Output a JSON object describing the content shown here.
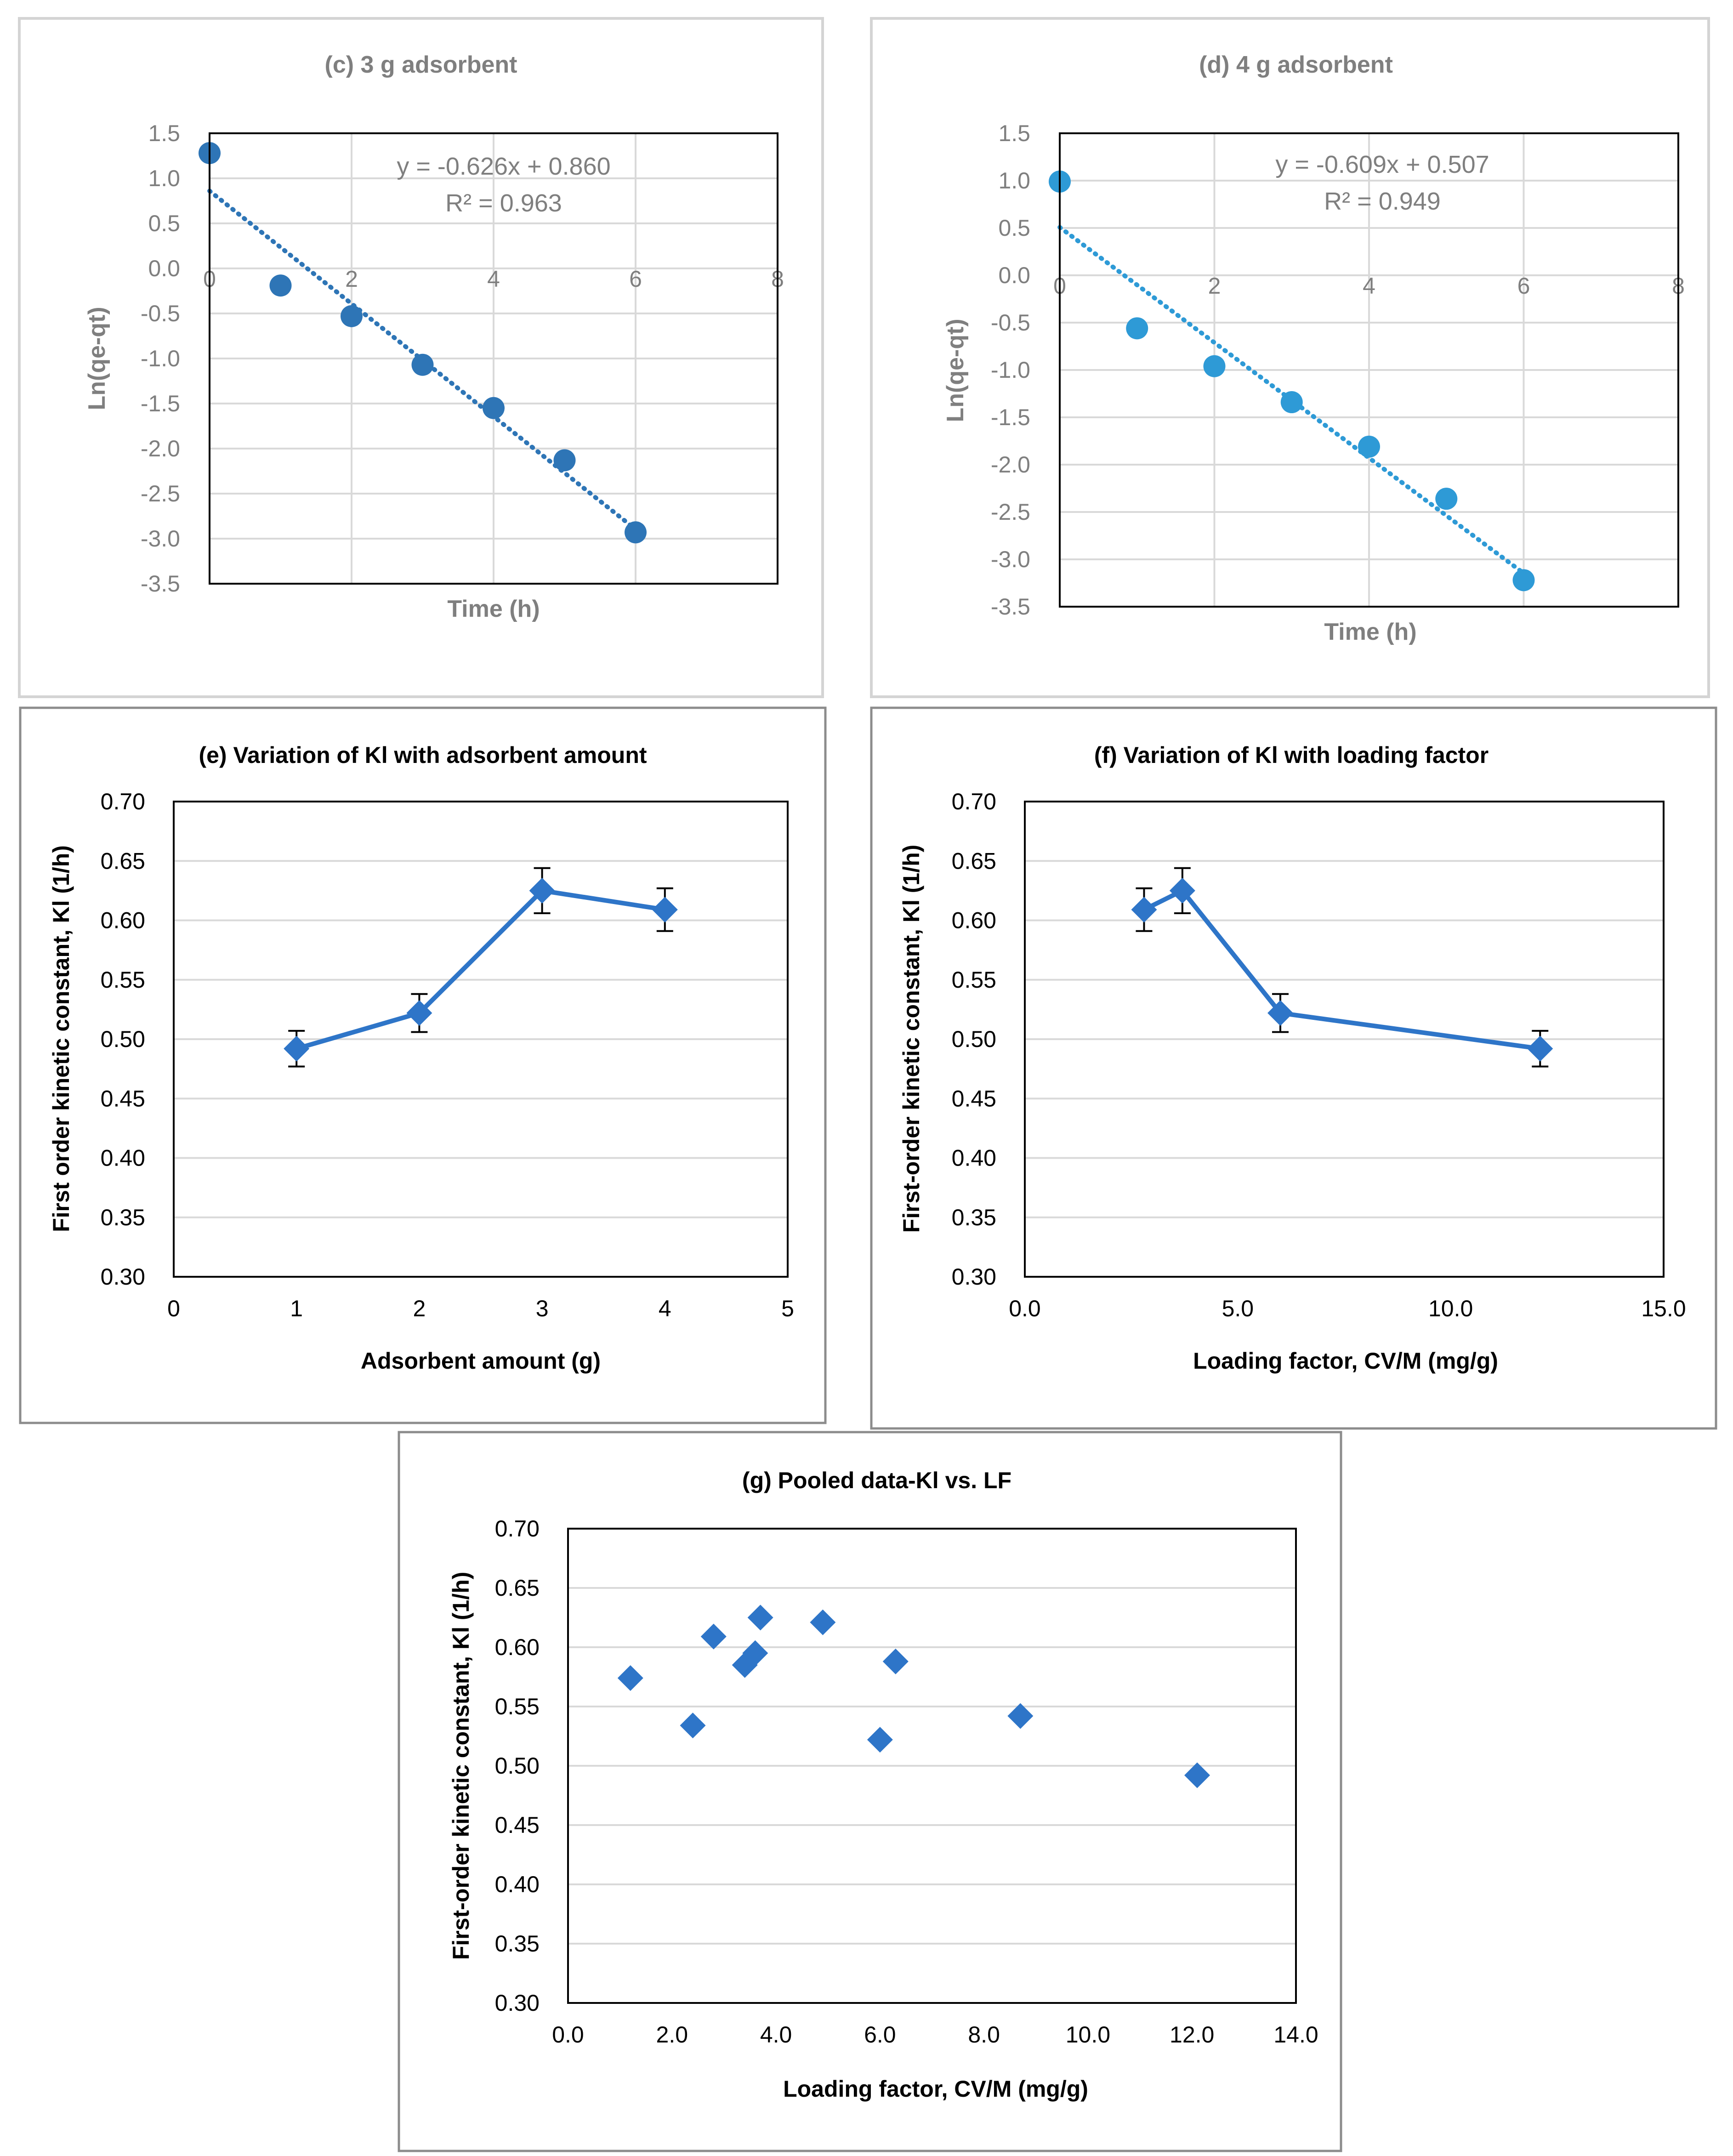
{
  "chart_data": [
    {
      "id": "c",
      "type": "scatter",
      "title": "(c) 3 g adsorbent",
      "xlabel": "Time (h)",
      "ylabel": "Ln(qe-qt)",
      "xlim": [
        0,
        8
      ],
      "ylim": [
        -3.5,
        1.5
      ],
      "x_ticks": [
        "0",
        "2",
        "4",
        "6",
        "8"
      ],
      "y_ticks": [
        "1.5",
        "1.0",
        "0.5",
        "0.0",
        "-0.5",
        "-1.0",
        "-1.5",
        "-2.0",
        "-2.5",
        "-3.0",
        "-3.5"
      ],
      "series": [
        {
          "name": "Ln(qe-qt)",
          "x": [
            0,
            1,
            2,
            3,
            4,
            5,
            6
          ],
          "y": [
            1.28,
            -0.19,
            -0.53,
            -1.07,
            -1.55,
            -2.13,
            -2.93
          ],
          "color": "#2e75b6"
        }
      ],
      "trendline": {
        "slope": -0.626,
        "intercept": 0.86,
        "x_range": [
          0,
          6
        ],
        "style": "dotted",
        "color": "#2e75b6"
      },
      "equation": "y = -0.626x + 0.860",
      "r_squared": "R² = 0.963",
      "grid": true
    },
    {
      "id": "d",
      "type": "scatter",
      "title": "(d) 4 g adsorbent",
      "xlabel": "Time (h)",
      "ylabel": "Ln(qe-qt)",
      "xlim": [
        0,
        8
      ],
      "ylim": [
        -3.5,
        1.5
      ],
      "x_ticks": [
        "0",
        "2",
        "4",
        "6",
        "8"
      ],
      "y_ticks": [
        "1.5",
        "1.0",
        "0.5",
        "0.0",
        "-0.5",
        "-1.0",
        "-1.5",
        "-2.0",
        "-2.5",
        "-3.0",
        "-3.5"
      ],
      "series": [
        {
          "name": "Ln(qe-qt)",
          "x": [
            0,
            1,
            2,
            3,
            4,
            5,
            6
          ],
          "y": [
            0.99,
            -0.56,
            -0.96,
            -1.34,
            -1.81,
            -2.36,
            -3.22
          ],
          "color": "#2e9ad6"
        }
      ],
      "trendline": {
        "slope": -0.609,
        "intercept": 0.507,
        "x_range": [
          0,
          6
        ],
        "style": "dotted",
        "color": "#2e9ad6"
      },
      "equation": "y = -0.609x + 0.507",
      "r_squared": "R² = 0.949",
      "grid": true
    },
    {
      "id": "e",
      "type": "line",
      "title": "(e) Variation of Kl with adsorbent amount",
      "xlabel": "Adsorbent amount (g)",
      "ylabel": "First order kinetic constant, Kl (1/h)",
      "xlim": [
        0,
        5
      ],
      "ylim": [
        0.3,
        0.7
      ],
      "x_ticks": [
        "0",
        "1",
        "2",
        "3",
        "4",
        "5"
      ],
      "y_ticks": [
        "0.70",
        "0.65",
        "0.60",
        "0.55",
        "0.50",
        "0.45",
        "0.40",
        "0.35",
        "0.30"
      ],
      "series": [
        {
          "name": "Kl",
          "x": [
            1,
            2,
            3,
            4
          ],
          "y": [
            0.492,
            0.522,
            0.625,
            0.609
          ],
          "err": [
            0.015,
            0.016,
            0.019,
            0.018
          ],
          "color": "#2e75c8"
        }
      ],
      "grid": true
    },
    {
      "id": "f",
      "type": "line",
      "title": "(f) Variation of Kl with loading factor",
      "xlabel": "Loading factor, CV/M (mg/g)",
      "ylabel": "First-order kinetic constant, Kl (1/h)",
      "xlim": [
        0,
        15
      ],
      "ylim": [
        0.3,
        0.7
      ],
      "x_ticks": [
        "0.0",
        "5.0",
        "10.0",
        "15.0"
      ],
      "y_ticks": [
        "0.70",
        "0.65",
        "0.60",
        "0.55",
        "0.50",
        "0.45",
        "0.40",
        "0.35",
        "0.30"
      ],
      "series": [
        {
          "name": "Kl",
          "x": [
            2.8,
            3.7,
            6.0,
            12.1
          ],
          "y": [
            0.609,
            0.625,
            0.522,
            0.492
          ],
          "err": [
            0.018,
            0.019,
            0.016,
            0.015
          ],
          "color": "#2e75c8"
        }
      ],
      "grid": true
    },
    {
      "id": "g",
      "type": "scatter",
      "title": "(g) Pooled data-Kl vs. LF",
      "xlabel": "Loading factor, CV/M (mg/g)",
      "ylabel": "First-order kinetic constant, Kl (1/h)",
      "xlim": [
        0,
        14
      ],
      "ylim": [
        0.3,
        0.7
      ],
      "x_ticks": [
        "0.0",
        "2.0",
        "4.0",
        "6.0",
        "8.0",
        "10.0",
        "12.0",
        "14.0"
      ],
      "y_ticks": [
        "0.70",
        "0.65",
        "0.60",
        "0.55",
        "0.50",
        "0.45",
        "0.40",
        "0.35",
        "0.30"
      ],
      "series": [
        {
          "name": "Kl",
          "x": [
            1.2,
            2.4,
            2.8,
            3.4,
            3.6,
            3.7,
            4.9,
            6.0,
            6.3,
            8.7,
            12.1
          ],
          "y": [
            0.574,
            0.534,
            0.609,
            0.585,
            0.595,
            0.625,
            0.621,
            0.522,
            0.588,
            0.542,
            0.492
          ],
          "color": "#2e75c8"
        }
      ],
      "grid": true
    }
  ]
}
